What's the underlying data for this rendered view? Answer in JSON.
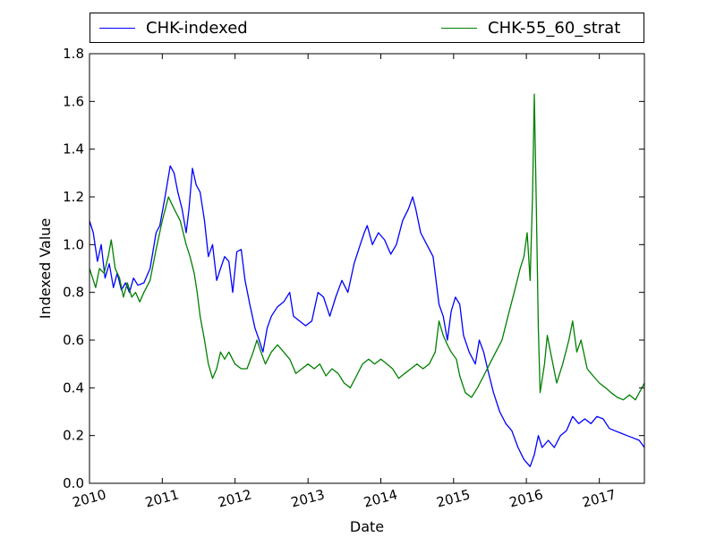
{
  "chart_data": {
    "type": "line",
    "xlabel": "Date",
    "ylabel": "Indexed Value",
    "xlim": [
      "2010-01-01",
      "2017-08-15"
    ],
    "ylim": [
      0.0,
      1.8
    ],
    "x_ticks": [
      "2010",
      "2011",
      "2012",
      "2013",
      "2014",
      "2015",
      "2016",
      "2017"
    ],
    "y_ticks": [
      "0.0",
      "0.2",
      "0.4",
      "0.6",
      "0.8",
      "1.0",
      "1.2",
      "1.4",
      "1.6",
      "1.8"
    ],
    "grid": false,
    "legend_position": "top",
    "series": [
      {
        "name": "CHK-indexed",
        "color": "#0000ff",
        "points": [
          [
            "2010-01-01",
            1.1
          ],
          [
            "2010-01-20",
            1.05
          ],
          [
            "2010-02-10",
            0.93
          ],
          [
            "2010-03-01",
            1.0
          ],
          [
            "2010-03-20",
            0.86
          ],
          [
            "2010-04-10",
            0.92
          ],
          [
            "2010-05-01",
            0.82
          ],
          [
            "2010-05-20",
            0.88
          ],
          [
            "2010-06-10",
            0.81
          ],
          [
            "2010-07-01",
            0.84
          ],
          [
            "2010-07-20",
            0.8
          ],
          [
            "2010-08-10",
            0.86
          ],
          [
            "2010-09-01",
            0.83
          ],
          [
            "2010-10-01",
            0.84
          ],
          [
            "2010-11-01",
            0.9
          ],
          [
            "2010-12-01",
            1.05
          ],
          [
            "2010-12-20",
            1.08
          ],
          [
            "2011-01-15",
            1.2
          ],
          [
            "2011-02-10",
            1.33
          ],
          [
            "2011-03-01",
            1.3
          ],
          [
            "2011-03-20",
            1.22
          ],
          [
            "2011-04-10",
            1.15
          ],
          [
            "2011-05-01",
            1.05
          ],
          [
            "2011-05-15",
            1.15
          ],
          [
            "2011-06-01",
            1.32
          ],
          [
            "2011-06-20",
            1.25
          ],
          [
            "2011-07-10",
            1.22
          ],
          [
            "2011-08-01",
            1.1
          ],
          [
            "2011-08-20",
            0.95
          ],
          [
            "2011-09-10",
            1.0
          ],
          [
            "2011-10-01",
            0.85
          ],
          [
            "2011-10-20",
            0.9
          ],
          [
            "2011-11-10",
            0.95
          ],
          [
            "2011-12-01",
            0.93
          ],
          [
            "2011-12-20",
            0.8
          ],
          [
            "2012-01-10",
            0.97
          ],
          [
            "2012-02-01",
            0.98
          ],
          [
            "2012-02-20",
            0.85
          ],
          [
            "2012-03-15",
            0.75
          ],
          [
            "2012-04-10",
            0.65
          ],
          [
            "2012-05-01",
            0.6
          ],
          [
            "2012-05-20",
            0.55
          ],
          [
            "2012-06-10",
            0.65
          ],
          [
            "2012-07-01",
            0.7
          ],
          [
            "2012-08-01",
            0.74
          ],
          [
            "2012-09-01",
            0.76
          ],
          [
            "2012-10-01",
            0.8
          ],
          [
            "2012-10-20",
            0.7
          ],
          [
            "2012-11-20",
            0.68
          ],
          [
            "2012-12-20",
            0.66
          ],
          [
            "2013-01-20",
            0.68
          ],
          [
            "2013-02-20",
            0.8
          ],
          [
            "2013-03-20",
            0.78
          ],
          [
            "2013-04-20",
            0.7
          ],
          [
            "2013-05-20",
            0.78
          ],
          [
            "2013-06-20",
            0.85
          ],
          [
            "2013-07-20",
            0.8
          ],
          [
            "2013-08-20",
            0.92
          ],
          [
            "2013-09-20",
            1.0
          ],
          [
            "2013-10-10",
            1.05
          ],
          [
            "2013-10-25",
            1.08
          ],
          [
            "2013-11-20",
            1.0
          ],
          [
            "2013-12-20",
            1.05
          ],
          [
            "2014-01-20",
            1.02
          ],
          [
            "2014-02-20",
            0.96
          ],
          [
            "2014-03-20",
            1.0
          ],
          [
            "2014-04-20",
            1.1
          ],
          [
            "2014-05-20",
            1.15
          ],
          [
            "2014-06-10",
            1.2
          ],
          [
            "2014-06-25",
            1.15
          ],
          [
            "2014-07-20",
            1.05
          ],
          [
            "2014-08-20",
            1.0
          ],
          [
            "2014-09-20",
            0.95
          ],
          [
            "2014-10-20",
            0.75
          ],
          [
            "2014-11-10",
            0.7
          ],
          [
            "2014-12-01",
            0.6
          ],
          [
            "2014-12-20",
            0.72
          ],
          [
            "2015-01-10",
            0.78
          ],
          [
            "2015-02-01",
            0.75
          ],
          [
            "2015-02-20",
            0.62
          ],
          [
            "2015-03-20",
            0.55
          ],
          [
            "2015-04-20",
            0.5
          ],
          [
            "2015-05-10",
            0.6
          ],
          [
            "2015-06-01",
            0.55
          ],
          [
            "2015-06-20",
            0.48
          ],
          [
            "2015-07-20",
            0.38
          ],
          [
            "2015-08-20",
            0.3
          ],
          [
            "2015-09-20",
            0.25
          ],
          [
            "2015-10-20",
            0.22
          ],
          [
            "2015-11-20",
            0.15
          ],
          [
            "2015-12-20",
            0.1
          ],
          [
            "2016-01-20",
            0.07
          ],
          [
            "2016-02-10",
            0.12
          ],
          [
            "2016-03-01",
            0.2
          ],
          [
            "2016-03-20",
            0.15
          ],
          [
            "2016-04-20",
            0.18
          ],
          [
            "2016-05-20",
            0.15
          ],
          [
            "2016-06-20",
            0.2
          ],
          [
            "2016-07-20",
            0.22
          ],
          [
            "2016-08-20",
            0.28
          ],
          [
            "2016-09-20",
            0.25
          ],
          [
            "2016-10-20",
            0.27
          ],
          [
            "2016-11-20",
            0.25
          ],
          [
            "2016-12-20",
            0.28
          ],
          [
            "2017-01-20",
            0.27
          ],
          [
            "2017-02-20",
            0.23
          ],
          [
            "2017-03-20",
            0.22
          ],
          [
            "2017-04-20",
            0.21
          ],
          [
            "2017-05-20",
            0.2
          ],
          [
            "2017-06-20",
            0.19
          ],
          [
            "2017-07-20",
            0.18
          ],
          [
            "2017-08-15",
            0.15
          ]
        ]
      },
      {
        "name": "CHK-55_60_strat",
        "color": "#008000",
        "points": [
          [
            "2010-01-01",
            0.9
          ],
          [
            "2010-02-01",
            0.82
          ],
          [
            "2010-02-20",
            0.9
          ],
          [
            "2010-03-15",
            0.88
          ],
          [
            "2010-04-05",
            0.95
          ],
          [
            "2010-04-20",
            1.02
          ],
          [
            "2010-05-10",
            0.9
          ],
          [
            "2010-06-01",
            0.86
          ],
          [
            "2010-06-20",
            0.78
          ],
          [
            "2010-07-10",
            0.84
          ],
          [
            "2010-08-01",
            0.78
          ],
          [
            "2010-08-20",
            0.8
          ],
          [
            "2010-09-10",
            0.76
          ],
          [
            "2010-10-01",
            0.8
          ],
          [
            "2010-11-01",
            0.85
          ],
          [
            "2010-12-01",
            0.98
          ],
          [
            "2011-01-01",
            1.1
          ],
          [
            "2011-02-01",
            1.2
          ],
          [
            "2011-03-01",
            1.15
          ],
          [
            "2011-04-01",
            1.1
          ],
          [
            "2011-05-01",
            1.0
          ],
          [
            "2011-05-20",
            0.95
          ],
          [
            "2011-06-10",
            0.88
          ],
          [
            "2011-06-25",
            0.8
          ],
          [
            "2011-07-10",
            0.7
          ],
          [
            "2011-08-01",
            0.6
          ],
          [
            "2011-08-20",
            0.5
          ],
          [
            "2011-09-10",
            0.44
          ],
          [
            "2011-10-01",
            0.48
          ],
          [
            "2011-10-20",
            0.55
          ],
          [
            "2011-11-10",
            0.52
          ],
          [
            "2011-12-01",
            0.55
          ],
          [
            "2012-01-01",
            0.5
          ],
          [
            "2012-02-01",
            0.48
          ],
          [
            "2012-03-01",
            0.48
          ],
          [
            "2012-04-01",
            0.55
          ],
          [
            "2012-04-20",
            0.6
          ],
          [
            "2012-05-10",
            0.55
          ],
          [
            "2012-06-01",
            0.5
          ],
          [
            "2012-07-01",
            0.55
          ],
          [
            "2012-08-01",
            0.58
          ],
          [
            "2012-09-01",
            0.55
          ],
          [
            "2012-10-01",
            0.52
          ],
          [
            "2012-11-01",
            0.46
          ],
          [
            "2012-12-01",
            0.48
          ],
          [
            "2013-01-01",
            0.5
          ],
          [
            "2013-02-01",
            0.48
          ],
          [
            "2013-03-01",
            0.5
          ],
          [
            "2013-04-01",
            0.45
          ],
          [
            "2013-05-01",
            0.48
          ],
          [
            "2013-06-01",
            0.46
          ],
          [
            "2013-07-01",
            0.42
          ],
          [
            "2013-08-01",
            0.4
          ],
          [
            "2013-09-01",
            0.45
          ],
          [
            "2013-10-01",
            0.5
          ],
          [
            "2013-11-01",
            0.52
          ],
          [
            "2013-12-01",
            0.5
          ],
          [
            "2014-01-01",
            0.52
          ],
          [
            "2014-02-01",
            0.5
          ],
          [
            "2014-03-01",
            0.48
          ],
          [
            "2014-04-01",
            0.44
          ],
          [
            "2014-05-01",
            0.46
          ],
          [
            "2014-06-01",
            0.48
          ],
          [
            "2014-07-01",
            0.5
          ],
          [
            "2014-08-01",
            0.48
          ],
          [
            "2014-09-01",
            0.5
          ],
          [
            "2014-10-01",
            0.55
          ],
          [
            "2014-10-20",
            0.68
          ],
          [
            "2014-11-10",
            0.62
          ],
          [
            "2014-12-01",
            0.58
          ],
          [
            "2014-12-20",
            0.55
          ],
          [
            "2015-01-15",
            0.52
          ],
          [
            "2015-02-01",
            0.45
          ],
          [
            "2015-03-01",
            0.38
          ],
          [
            "2015-04-01",
            0.36
          ],
          [
            "2015-05-01",
            0.4
          ],
          [
            "2015-06-01",
            0.45
          ],
          [
            "2015-07-01",
            0.5
          ],
          [
            "2015-08-01",
            0.55
          ],
          [
            "2015-09-01",
            0.6
          ],
          [
            "2015-10-01",
            0.7
          ],
          [
            "2015-11-01",
            0.8
          ],
          [
            "2015-12-01",
            0.9
          ],
          [
            "2015-12-20",
            0.95
          ],
          [
            "2016-01-05",
            1.05
          ],
          [
            "2016-01-20",
            0.85
          ],
          [
            "2016-02-01",
            1.2
          ],
          [
            "2016-02-10",
            1.63
          ],
          [
            "2016-02-20",
            1.15
          ],
          [
            "2016-03-01",
            0.65
          ],
          [
            "2016-03-10",
            0.38
          ],
          [
            "2016-04-01",
            0.5
          ],
          [
            "2016-04-15",
            0.62
          ],
          [
            "2016-05-01",
            0.55
          ],
          [
            "2016-06-01",
            0.42
          ],
          [
            "2016-07-01",
            0.5
          ],
          [
            "2016-08-01",
            0.6
          ],
          [
            "2016-08-20",
            0.68
          ],
          [
            "2016-09-10",
            0.55
          ],
          [
            "2016-10-01",
            0.6
          ],
          [
            "2016-11-01",
            0.48
          ],
          [
            "2016-12-01",
            0.45
          ],
          [
            "2017-01-01",
            0.42
          ],
          [
            "2017-02-01",
            0.4
          ],
          [
            "2017-03-01",
            0.38
          ],
          [
            "2017-04-01",
            0.36
          ],
          [
            "2017-05-01",
            0.35
          ],
          [
            "2017-06-01",
            0.37
          ],
          [
            "2017-07-01",
            0.35
          ],
          [
            "2017-08-15",
            0.42
          ]
        ]
      }
    ]
  }
}
